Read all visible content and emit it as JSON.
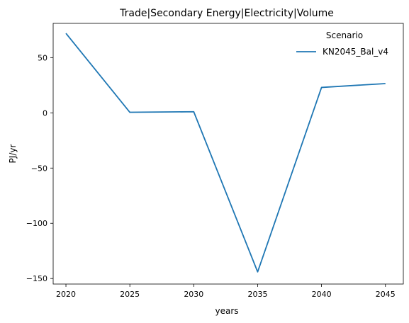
{
  "chart_data": {
    "type": "line",
    "title": "Trade|Secondary Energy|Electricity|Volume",
    "xlabel": "years",
    "ylabel": "PJ/yr",
    "x": [
      2020,
      2025,
      2030,
      2035,
      2040,
      2045
    ],
    "series": [
      {
        "name": "KN2045_Bal_v4",
        "values": [
          72,
          0.5,
          1,
          -144,
          23,
          26.5
        ],
        "color": "#1f77b4"
      }
    ],
    "xlim": [
      2019,
      2046.4
    ],
    "ylim": [
      -155,
      81
    ],
    "xticks": [
      2020,
      2025,
      2030,
      2035,
      2040,
      2045
    ],
    "yticks": [
      -150,
      -100,
      -50,
      0,
      50
    ],
    "ytick_labels": [
      "−150",
      "−100",
      "−50",
      "0",
      "50"
    ],
    "legend": {
      "title": "Scenario",
      "placement": "top-right"
    },
    "grid": false
  }
}
